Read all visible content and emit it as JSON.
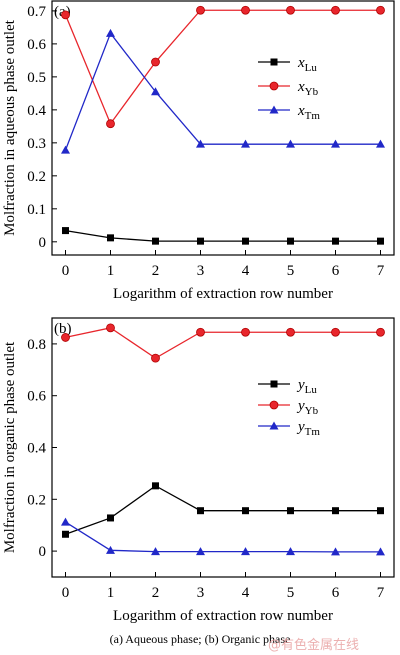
{
  "caption": "(a) Aqueous phase;  (b) Organic phase",
  "watermark": "@有色金属在线",
  "colors": {
    "Lu": "#000000",
    "Yb": "#e8262c",
    "Tm": "#2128c8"
  },
  "chart_data": [
    {
      "type": "line",
      "panel_label": "(a)",
      "xlabel": "Logarithm of extraction row number",
      "ylabel": "Molfraction in aqueous phase outlet",
      "x": [
        0,
        1,
        2,
        3,
        4,
        5,
        6,
        7
      ],
      "xlim": [
        -0.3,
        7.3
      ],
      "ylim": [
        -0.04,
        0.73
      ],
      "yticks": [
        "0",
        "0.1",
        "0.2",
        "0.3",
        "0.4",
        "0.5",
        "0.6",
        "0.7"
      ],
      "xticks": [
        "0",
        "1",
        "2",
        "3",
        "4",
        "5",
        "6",
        "7"
      ],
      "legend_position": "right",
      "series": [
        {
          "name": "x",
          "sub": "Lu",
          "key": "Lu",
          "marker": "square",
          "values": [
            0.034,
            0.012,
            0.002,
            0.002,
            0.002,
            0.002,
            0.002,
            0.002
          ]
        },
        {
          "name": "x",
          "sub": "Yb",
          "key": "Yb",
          "marker": "circle",
          "values": [
            0.688,
            0.358,
            0.545,
            0.702,
            0.702,
            0.702,
            0.702,
            0.702
          ]
        },
        {
          "name": "x",
          "sub": "Tm",
          "key": "Tm",
          "marker": "triangle",
          "values": [
            0.278,
            0.632,
            0.455,
            0.296,
            0.296,
            0.296,
            0.296,
            0.296
          ]
        }
      ]
    },
    {
      "type": "line",
      "panel_label": "(b)",
      "xlabel": "Logarithm of extraction row number",
      "ylabel": "Molfraction in organic phase outlet",
      "x": [
        0,
        1,
        2,
        3,
        4,
        5,
        6,
        7
      ],
      "xlim": [
        -0.3,
        7.3
      ],
      "ylim": [
        -0.1,
        0.9
      ],
      "yticks": [
        "0",
        "0.2",
        "0.4",
        "0.6",
        "0.8"
      ],
      "xticks": [
        "0",
        "1",
        "2",
        "3",
        "4",
        "5",
        "6",
        "7"
      ],
      "legend_position": "right",
      "series": [
        {
          "name": "y",
          "sub": "Lu",
          "key": "Lu",
          "marker": "square",
          "values": [
            0.065,
            0.128,
            0.252,
            0.156,
            0.156,
            0.156,
            0.156,
            0.156
          ]
        },
        {
          "name": "y",
          "sub": "Yb",
          "key": "Yb",
          "marker": "circle",
          "values": [
            0.825,
            0.862,
            0.745,
            0.845,
            0.845,
            0.845,
            0.845,
            0.845
          ]
        },
        {
          "name": "y",
          "sub": "Tm",
          "key": "Tm",
          "marker": "triangle",
          "values": [
            0.112,
            0.003,
            -0.002,
            -0.002,
            -0.002,
            -0.002,
            -0.003,
            -0.003
          ]
        }
      ]
    }
  ]
}
